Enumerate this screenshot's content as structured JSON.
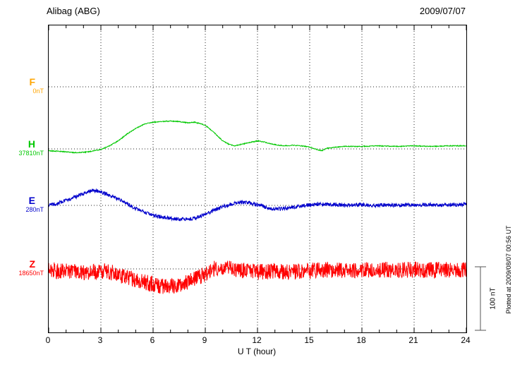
{
  "header": {
    "station": "Alibag (ABG)",
    "date": "2009/07/07"
  },
  "axis": {
    "xlabel": "U T (hour)",
    "tick_labels": [
      "0",
      "3",
      "6",
      "9",
      "12",
      "15",
      "18",
      "21",
      "24"
    ],
    "tick_hours": [
      0,
      3,
      6,
      9,
      12,
      15,
      18,
      21,
      24
    ],
    "grid_hours": [
      3,
      6,
      9,
      12,
      15,
      18,
      21
    ]
  },
  "scalebar": {
    "label": "100 nT",
    "nT": 100
  },
  "footer": {
    "plotted_at": "Plotted at 2009/08/07 00:56 UT"
  },
  "chart_data": {
    "type": "line",
    "title": "Alibag (ABG) magnetogram, 2009/07/07",
    "xlabel": "U T (hour)",
    "x_range_hours": [
      0,
      24
    ],
    "grid": true,
    "legend_position": "left",
    "scale_nT_per_bar": 100,
    "series": [
      {
        "name": "F",
        "color": "#FFA500",
        "reference": "0nT",
        "baseline_frac": 0.2,
        "noise_nT": 0,
        "visible": false,
        "points": [
          [
            0,
            0
          ],
          [
            24,
            0
          ]
        ]
      },
      {
        "name": "H",
        "color": "#00C800",
        "reference": "37810nT",
        "baseline_frac": 0.4023,
        "noise_nT": 0.7,
        "visible": true,
        "points": [
          [
            0,
            -3
          ],
          [
            0.7,
            -4
          ],
          [
            1.5,
            -6
          ],
          [
            2.2,
            -5
          ],
          [
            3,
            -1
          ],
          [
            3.5,
            5
          ],
          [
            4,
            13
          ],
          [
            4.5,
            24
          ],
          [
            5,
            33
          ],
          [
            5.5,
            40
          ],
          [
            6,
            43
          ],
          [
            6.5,
            44
          ],
          [
            7,
            45
          ],
          [
            7.5,
            44
          ],
          [
            8,
            42
          ],
          [
            8.4,
            43
          ],
          [
            8.8,
            40
          ],
          [
            9,
            38
          ],
          [
            9.4,
            29
          ],
          [
            9.7,
            21
          ],
          [
            10,
            13
          ],
          [
            10.4,
            7
          ],
          [
            10.7,
            5
          ],
          [
            11,
            7
          ],
          [
            11.5,
            10
          ],
          [
            12,
            13
          ],
          [
            12.4,
            11
          ],
          [
            12.8,
            8
          ],
          [
            13.2,
            6
          ],
          [
            13.6,
            5
          ],
          [
            14,
            6
          ],
          [
            14.5,
            5
          ],
          [
            15,
            3
          ],
          [
            15.4,
            -1
          ],
          [
            15.7,
            -3
          ],
          [
            16,
            1
          ],
          [
            16.5,
            3
          ],
          [
            17,
            4
          ],
          [
            18,
            4
          ],
          [
            19,
            5
          ],
          [
            20,
            4
          ],
          [
            21,
            5
          ],
          [
            22,
            4
          ],
          [
            23,
            5
          ],
          [
            24,
            5
          ]
        ]
      },
      {
        "name": "E",
        "color": "#0000CC",
        "reference": "280nT",
        "baseline_frac": 0.5862,
        "noise_nT": 3,
        "visible": true,
        "points": [
          [
            0,
            0
          ],
          [
            0.5,
            3
          ],
          [
            1,
            8
          ],
          [
            1.5,
            13
          ],
          [
            2,
            19
          ],
          [
            2.5,
            24
          ],
          [
            3,
            22
          ],
          [
            3.5,
            16
          ],
          [
            4,
            10
          ],
          [
            4.5,
            2
          ],
          [
            5,
            -5
          ],
          [
            5.5,
            -11
          ],
          [
            6,
            -16
          ],
          [
            6.5,
            -19
          ],
          [
            7,
            -21
          ],
          [
            7.5,
            -22
          ],
          [
            8,
            -23
          ],
          [
            8.5,
            -20
          ],
          [
            9,
            -14
          ],
          [
            9.5,
            -8
          ],
          [
            10,
            -2
          ],
          [
            10.5,
            2
          ],
          [
            11,
            5
          ],
          [
            11.5,
            4
          ],
          [
            12,
            1
          ],
          [
            12.5,
            -3
          ],
          [
            13,
            -6
          ],
          [
            13.5,
            -5
          ],
          [
            14,
            -3
          ],
          [
            14.5,
            -1
          ],
          [
            15,
            1
          ],
          [
            15.5,
            2
          ],
          [
            16,
            2
          ],
          [
            16.5,
            1
          ],
          [
            17,
            0
          ],
          [
            18,
            1
          ],
          [
            18.5,
            0
          ],
          [
            19,
            0
          ],
          [
            19.5,
            1
          ],
          [
            20,
            0
          ],
          [
            20.5,
            1
          ],
          [
            21,
            0
          ],
          [
            21.5,
            1
          ],
          [
            22,
            1
          ],
          [
            22.5,
            0
          ],
          [
            23,
            1
          ],
          [
            23.5,
            1
          ],
          [
            24,
            2
          ]
        ]
      },
      {
        "name": "Z",
        "color": "#FF0000",
        "reference": "18650nT",
        "baseline_frac": 0.7931,
        "noise_nT": 13,
        "visible": true,
        "points": [
          [
            0,
            -2
          ],
          [
            1,
            -4
          ],
          [
            2,
            -6
          ],
          [
            2.5,
            -4
          ],
          [
            3,
            -3
          ],
          [
            3.5,
            -5
          ],
          [
            4,
            -9
          ],
          [
            4.5,
            -13
          ],
          [
            5,
            -17
          ],
          [
            5.5,
            -21
          ],
          [
            6,
            -25
          ],
          [
            6.5,
            -28
          ],
          [
            7,
            -29
          ],
          [
            7.5,
            -27
          ],
          [
            8,
            -22
          ],
          [
            8.5,
            -15
          ],
          [
            9,
            -8
          ],
          [
            9.5,
            0
          ],
          [
            10,
            2
          ],
          [
            10.5,
            0
          ],
          [
            11,
            -2
          ],
          [
            11.5,
            -4
          ],
          [
            12,
            -5
          ],
          [
            12.5,
            -4
          ],
          [
            13,
            -3
          ],
          [
            13.5,
            -4
          ],
          [
            14,
            -5
          ],
          [
            14.5,
            -4
          ],
          [
            15,
            -3
          ],
          [
            15.5,
            -2
          ],
          [
            16,
            -1
          ],
          [
            17,
            -2
          ],
          [
            18,
            -2
          ],
          [
            19,
            -1
          ],
          [
            20,
            -2
          ],
          [
            21,
            -1
          ],
          [
            22,
            -2
          ],
          [
            23,
            -1
          ],
          [
            24,
            -1
          ]
        ]
      }
    ]
  }
}
